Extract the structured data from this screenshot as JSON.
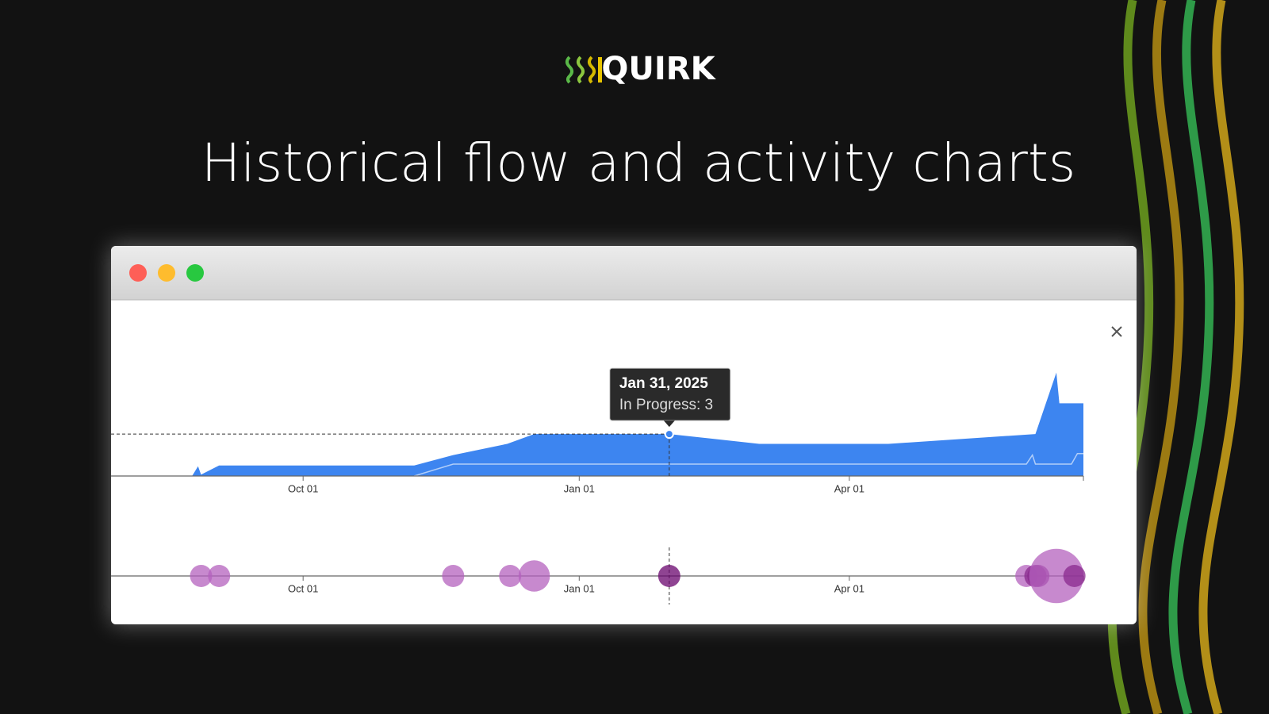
{
  "header": {
    "logo": "QUIRK",
    "title": "Historical flow and activity charts"
  },
  "chart_data": [
    {
      "type": "area",
      "xlim": [
        "2024-07-29",
        "2025-06-18"
      ],
      "ylim": [
        0,
        8
      ],
      "xticks": [
        {
          "value": "2024-10-01",
          "label": "Oct 01"
        },
        {
          "value": "2025-01-01",
          "label": "Jan 01"
        },
        {
          "value": "2025-04-01",
          "label": "Apr 01"
        }
      ],
      "series": [
        {
          "color": "#3d85f0",
          "x": [
            "2024-07-29",
            "2024-08-25",
            "2024-08-27",
            "2024-08-28",
            "2024-09-03",
            "2024-11-07",
            "2024-11-20",
            "2024-12-08",
            "2024-12-17",
            "2025-01-31",
            "2025-03-02",
            "2025-04-14",
            "2025-06-02",
            "2025-06-09",
            "2025-06-10",
            "2025-06-18"
          ],
          "values": [
            0,
            0,
            0.7,
            0.1,
            0.75,
            0.75,
            1.5,
            2.3,
            3,
            3,
            2.3,
            2.3,
            3,
            7.4,
            5.2,
            5.2
          ]
        },
        {
          "color": "#ffffff",
          "x": [
            "2024-11-07",
            "2024-11-20",
            "2025-05-30",
            "2025-06-01",
            "2025-06-02",
            "2025-06-14",
            "2025-06-16",
            "2025-06-18"
          ],
          "values": [
            0,
            0.85,
            0.85,
            1.5,
            0.85,
            0.85,
            1.6,
            1.6
          ]
        }
      ],
      "tooltip": {
        "x": "2025-01-31",
        "value": 3,
        "title": "Jan 31, 2025",
        "label": "In Progress: 3"
      }
    },
    {
      "type": "bubble",
      "xlim": [
        "2024-07-29",
        "2025-06-18"
      ],
      "xticks": [
        {
          "value": "2024-10-01",
          "label": "Oct 01"
        },
        {
          "value": "2025-01-01",
          "label": "Jan 01"
        },
        {
          "value": "2025-04-01",
          "label": "Apr 01"
        }
      ],
      "x": [
        "2024-08-28",
        "2024-09-03",
        "2024-11-20",
        "2024-12-09",
        "2024-12-17",
        "2025-01-31",
        "2025-05-30",
        "2025-06-02",
        "2025-06-03",
        "2025-06-09",
        "2025-06-15"
      ],
      "sizes": [
        1,
        1,
        1,
        1,
        2,
        1,
        1,
        1,
        1,
        6,
        1
      ],
      "colors": [
        "#b462bd",
        "#b462bd",
        "#b462bd",
        "#b462bd",
        "#b462bd",
        "#6a066d",
        "#b462bd",
        "#8a2a8e",
        "#8a2a8e",
        "#b462bd",
        "#8a2a8e"
      ],
      "highlight_x": "2025-01-31"
    }
  ]
}
